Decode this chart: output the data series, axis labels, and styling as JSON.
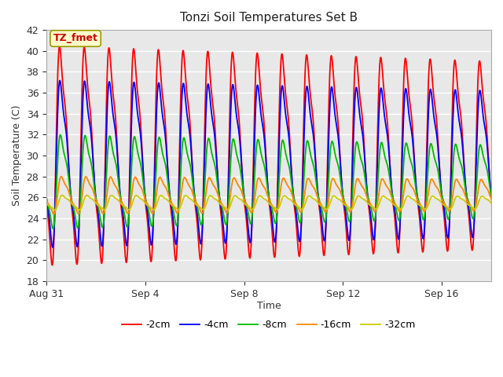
{
  "title": "Tonzi Soil Temperatures Set B",
  "xlabel": "Time",
  "ylabel": "Soil Temperature (C)",
  "annotation": "TZ_fmet",
  "ylim": [
    18,
    42
  ],
  "yticks": [
    18,
    20,
    22,
    24,
    26,
    28,
    30,
    32,
    34,
    36,
    38,
    40,
    42
  ],
  "fig_bg_color": "#ffffff",
  "plot_bg_color": "#e8e8e8",
  "grid_color": "#ffffff",
  "series": [
    {
      "label": "-2cm",
      "color": "#ff0000",
      "amp_start": 10.5,
      "amp_end": 9.0,
      "mean": 30.0,
      "phase": 0.0,
      "sharpness": 3.0
    },
    {
      "label": "-4cm",
      "color": "#0000ff",
      "amp_start": 8.0,
      "amp_end": 7.0,
      "mean": 29.2,
      "phase": 0.08,
      "sharpness": 2.5
    },
    {
      "label": "-8cm",
      "color": "#00bb00",
      "amp_start": 4.5,
      "amp_end": 3.5,
      "mean": 27.5,
      "phase": 0.2,
      "sharpness": 1.5
    },
    {
      "label": "-16cm",
      "color": "#ff8800",
      "amp_start": 1.8,
      "amp_end": 1.5,
      "mean": 26.2,
      "phase": 0.4,
      "sharpness": 1.0
    },
    {
      "label": "-32cm",
      "color": "#cccc00",
      "amp_start": 0.7,
      "amp_end": 0.6,
      "mean": 25.5,
      "phase": 0.65,
      "sharpness": 1.0
    }
  ],
  "n_days": 18,
  "samples_per_day": 96,
  "xtick_days": [
    0,
    4,
    8,
    12,
    16
  ],
  "xtick_labels": [
    "Aug 31",
    "Sep 4",
    "Sep 8",
    "Sep 12",
    "Sep 16"
  ],
  "figsize": [
    6.4,
    4.8
  ],
  "dpi": 100
}
